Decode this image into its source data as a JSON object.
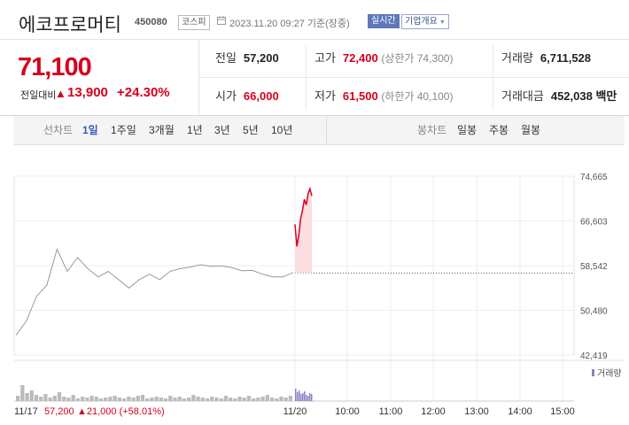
{
  "header": {
    "title": "에코프로머티",
    "code": "450080",
    "market": "코스피",
    "datetime": "2023.11.20 09:27 기준(장중)",
    "realtime_label": "실시간",
    "company_button": "기업개요"
  },
  "quote": {
    "price": "71,100",
    "change_label": "전일대비",
    "change_arrow": "▲",
    "change_value": "13,900",
    "change_rate": "+24.30%"
  },
  "stats": {
    "prev_close_label": "전일",
    "prev_close": "57,200",
    "high_label": "고가",
    "high": "72,400",
    "upper_limit": "(상한가 74,300)",
    "volume_label": "거래량",
    "volume": "6,711,528",
    "open_label": "시가",
    "open": "66,000",
    "low_label": "저가",
    "low": "61,500",
    "lower_limit": "(하한가 40,100)",
    "amount_label": "거래대금",
    "amount": "452,038 백만"
  },
  "tabs": {
    "line_label": "선차트",
    "line_items": [
      "1일",
      "1주일",
      "3개월",
      "1년",
      "3년",
      "5년",
      "10년"
    ],
    "selected": "1일",
    "candle_label": "봉차트",
    "candle_items": [
      "일봉",
      "주봉",
      "월봉"
    ]
  },
  "colors": {
    "up": "#d6001c",
    "prev_line": "#aaaaaa",
    "volume_today": "#8f7fc4",
    "accent": "#3a5bb5"
  },
  "chart_data": {
    "type": "line",
    "y_ticks": [
      "74,665",
      "66,603",
      "58,542",
      "50,480",
      "42,419"
    ],
    "ylim": [
      42419,
      74665
    ],
    "x_ticks": [
      "11/17",
      "11/20",
      "10:00",
      "11:00",
      "12:00",
      "13:00",
      "14:00",
      "15:00"
    ],
    "legend": "거래량",
    "prev_day_label": "11/17",
    "prev_day_close": "57,200",
    "prev_day_change": "▲21,000 (+58.01%)",
    "prev_close_value": 57200,
    "series": [
      {
        "values": [
          46000,
          48500,
          53000,
          55000,
          61500,
          57500,
          60000,
          58000,
          56500,
          57500,
          56000,
          54500,
          56000,
          57000,
          56000,
          57500,
          58000,
          58300,
          58700,
          58400,
          58500,
          58200,
          57600,
          57700,
          57000,
          56500,
          56500,
          57300
        ],
        "day": "11/17"
      },
      {
        "values": [
          66000,
          62000,
          64000,
          67000,
          68500,
          70500,
          69500,
          71500,
          72400,
          71100
        ],
        "day": "11/20"
      }
    ]
  }
}
